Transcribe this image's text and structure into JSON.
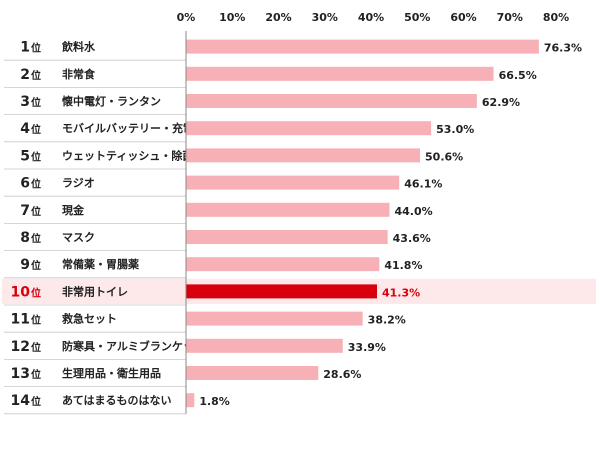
{
  "chart_data": {
    "type": "bar",
    "orientation": "horizontal",
    "x_ticks": [
      "0%",
      "10%",
      "20%",
      "30%",
      "40%",
      "50%",
      "60%",
      "70%",
      "80%"
    ],
    "xlim": [
      0,
      80
    ],
    "rank_suffix": "位",
    "highlight_index": 9,
    "colors": {
      "bar": "#f7b1b6",
      "highlight_bar": "#d9000d",
      "highlight_row": "#fde8ea",
      "divider": "#c8c8c8"
    },
    "rows": [
      {
        "rank": "1",
        "label": "飲料水",
        "value": 76.3,
        "value_label": "76.3%"
      },
      {
        "rank": "2",
        "label": "非常食",
        "value": 66.5,
        "value_label": "66.5%"
      },
      {
        "rank": "3",
        "label": "懐中電灯・ランタン",
        "value": 62.9,
        "value_label": "62.9%"
      },
      {
        "rank": "4",
        "label": "モバイルバッテリー・充電器",
        "value": 53.0,
        "value_label": "53.0%"
      },
      {
        "rank": "5",
        "label": "ウェットティッシュ・除菌シート",
        "value": 50.6,
        "value_label": "50.6%"
      },
      {
        "rank": "6",
        "label": "ラジオ",
        "value": 46.1,
        "value_label": "46.1%"
      },
      {
        "rank": "7",
        "label": "現金",
        "value": 44.0,
        "value_label": "44.0%"
      },
      {
        "rank": "8",
        "label": "マスク",
        "value": 43.6,
        "value_label": "43.6%"
      },
      {
        "rank": "9",
        "label": "常備薬・胃腸薬",
        "value": 41.8,
        "value_label": "41.8%"
      },
      {
        "rank": "10",
        "label": "非常用トイレ",
        "value": 41.3,
        "value_label": "41.3%"
      },
      {
        "rank": "11",
        "label": "救急セット",
        "value": 38.2,
        "value_label": "38.2%"
      },
      {
        "rank": "12",
        "label": "防寒具・アルミブランケット",
        "value": 33.9,
        "value_label": "33.9%"
      },
      {
        "rank": "13",
        "label": "生理用品・衛生用品",
        "value": 28.6,
        "value_label": "28.6%"
      },
      {
        "rank": "14",
        "label": "あてはまるものはない",
        "value": 1.8,
        "value_label": "1.8%"
      }
    ]
  }
}
